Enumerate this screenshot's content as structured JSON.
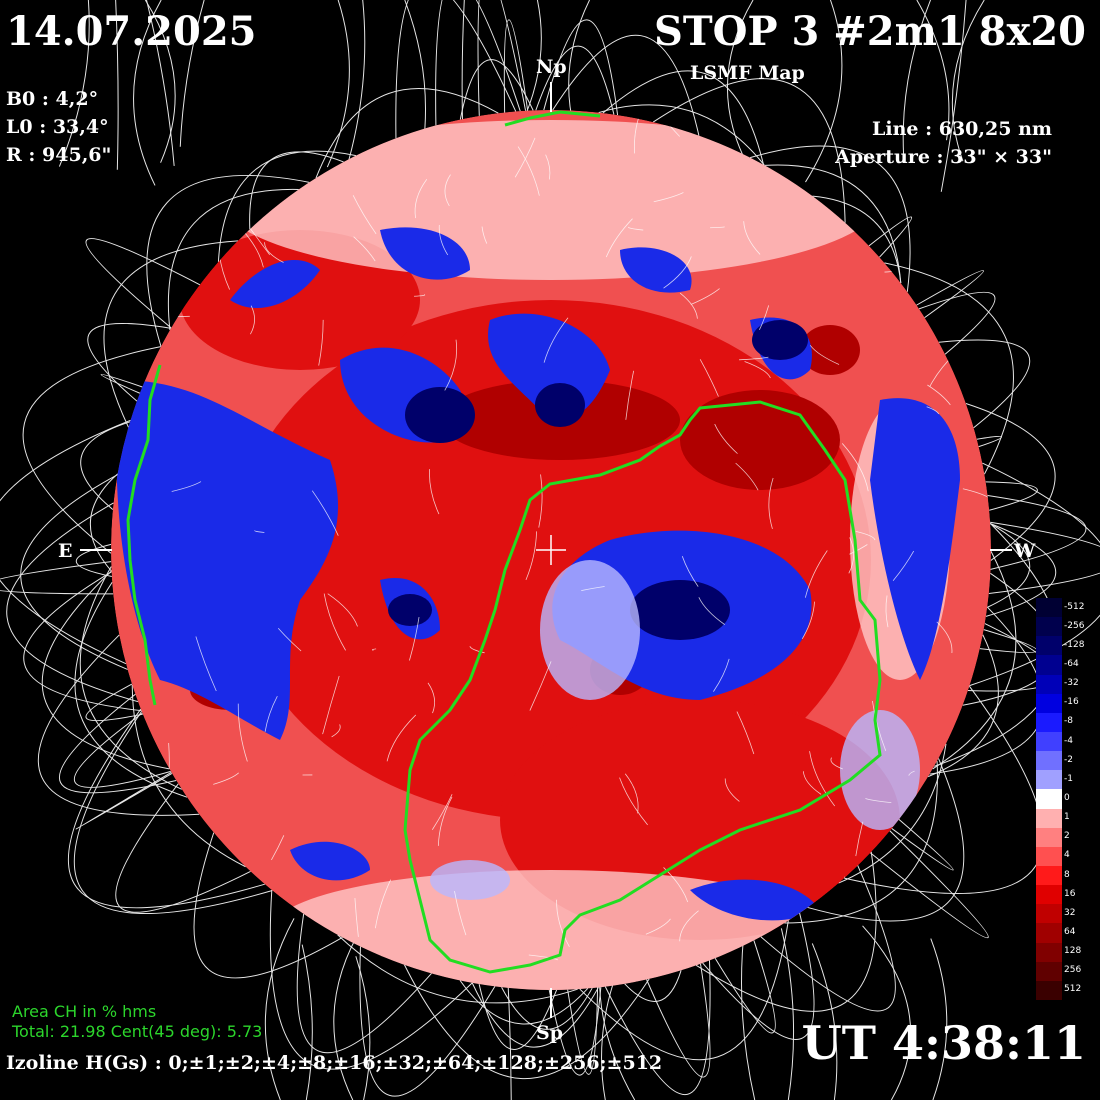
{
  "header": {
    "date": "14.07.2025",
    "title": "STOP 3 #2m1 8x20",
    "subtitle": "LSMF  Map"
  },
  "params": {
    "b0": "B0 : 4,2°",
    "l0": "L0 : 33,4°",
    "r": "R  : 945,6\""
  },
  "instrument": {
    "line": "Line :  630,25 nm",
    "aperture": "Aperture : 33\" × 33\""
  },
  "directions": {
    "north": "Np",
    "south": "Sp",
    "east": "E",
    "west": "W"
  },
  "coronal_hole": {
    "title": "Area CH in % hms",
    "values": "Total: 21.98    Cent(45 deg): 5.73"
  },
  "time": "UT 4:38:11",
  "izoline": "Izoline H(Gs) : 0;±1;±2;±4;±8;±16;±32;±64;±128;±256;±512",
  "colorbar": {
    "labels": [
      "-512",
      "-256",
      "-128",
      "-64",
      "-32",
      "-16",
      "-8",
      "-4",
      "-2",
      "-1",
      "0",
      "1",
      "2",
      "4",
      "8",
      "16",
      "32",
      "64",
      "128",
      "256",
      "512"
    ],
    "colors": [
      "#000033",
      "#00004d",
      "#00006b",
      "#000090",
      "#0000b8",
      "#0000e0",
      "#1a1aff",
      "#4040ff",
      "#7070ff",
      "#a0a0ff",
      "#ffffff",
      "#ffb0b0",
      "#ff8080",
      "#ff5050",
      "#ff1a1a",
      "#e00000",
      "#c00000",
      "#a00000",
      "#800000",
      "#600000",
      "#3a0000"
    ]
  },
  "colors": {
    "field_line": "#ffffff",
    "coronal_hole_boundary": "#22dd22",
    "positive": "#e00000",
    "negative": "#0000cc"
  }
}
